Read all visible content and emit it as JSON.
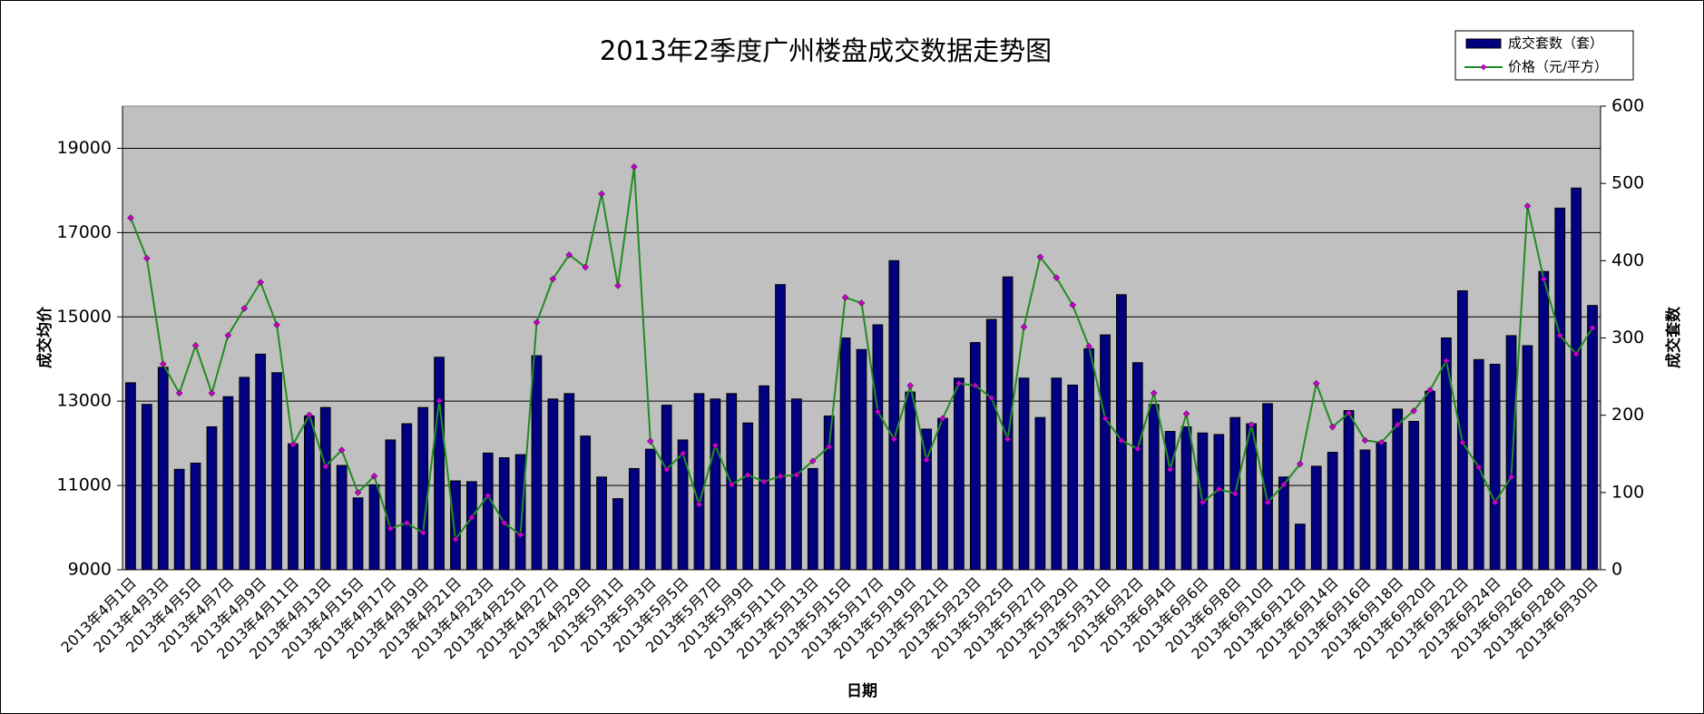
{
  "chart_data": {
    "type": "bar-line",
    "title": "2013年2季度广州楼盘成交数据走势图",
    "x_label": "日期",
    "y_label": "成交均价",
    "y2_label": "成交套数",
    "ylim": [
      9000,
      20000
    ],
    "yticks": [
      9000,
      11000,
      13000,
      15000,
      17000,
      19000
    ],
    "y2lim": [
      0,
      600
    ],
    "y2ticks": [
      0,
      100,
      200,
      300,
      400,
      500,
      600
    ],
    "grid": true,
    "legend": "top-right",
    "background": "#c0c0c0",
    "categories": [
      "2013年4月1日",
      null,
      "2013年4月3日",
      null,
      "2013年4月5日",
      null,
      "2013年4月7日",
      null,
      "2013年4月9日",
      null,
      "2013年4月11日",
      null,
      "2013年4月13日",
      null,
      "2013年4月15日",
      null,
      "2013年4月17日",
      null,
      "2013年4月19日",
      null,
      "2013年4月21日",
      null,
      "2013年4月23日",
      null,
      "2013年4月25日",
      null,
      "2013年4月27日",
      null,
      "2013年4月29日",
      null,
      "2013年5月1日",
      null,
      "2013年5月3日",
      null,
      "2013年5月5日",
      null,
      "2013年5月7日",
      null,
      "2013年5月9日",
      null,
      "2013年5月11日",
      null,
      "2013年5月13日",
      null,
      "2013年5月15日",
      null,
      "2013年5月17日",
      null,
      "2013年5月19日",
      null,
      "2013年5月21日",
      null,
      "2013年5月23日",
      null,
      "2013年5月25日",
      null,
      "2013年5月27日",
      null,
      "2013年5月29日",
      null,
      "2013年5月31日",
      null,
      "2013年6月2日",
      null,
      "2013年6月4日",
      null,
      "2013年6月6日",
      null,
      "2013年6月8日",
      null,
      "2013年6月10日",
      null,
      "2013年6月12日",
      null,
      "2013年6月14日",
      null,
      "2013年6月16日",
      null,
      "2013年6月18日",
      null,
      "2013年6月20日",
      null,
      "2013年6月22日",
      null,
      "2013年6月24日",
      null,
      "2013年6月26日",
      null,
      "2013年6月28日",
      null,
      "2013年6月30日"
    ],
    "series": [
      {
        "name": "成交套数（套）",
        "type": "bar",
        "axis": "y2",
        "color": "#000080",
        "values": [
          242,
          214,
          262,
          130,
          138,
          185,
          224,
          249,
          279,
          255,
          163,
          199,
          210,
          135,
          93,
          110,
          168,
          189,
          210,
          275,
          115,
          114,
          151,
          145,
          149,
          277,
          221,
          228,
          173,
          120,
          92,
          131,
          156,
          213,
          168,
          228,
          221,
          228,
          190,
          238,
          369,
          221,
          131,
          199,
          300,
          285,
          317,
          400,
          230,
          182,
          196,
          248,
          294,
          324,
          379,
          248,
          197,
          248,
          239,
          286,
          304,
          356,
          268,
          214,
          179,
          185,
          177,
          175,
          197,
          189,
          215,
          120,
          59,
          134,
          152,
          206,
          155,
          165,
          208,
          192,
          231,
          300,
          361,
          272,
          266,
          303,
          290,
          386,
          468,
          494,
          342
        ]
      },
      {
        "name": "价格（元/平方）",
        "type": "line",
        "axis": "y",
        "color": "#228b22",
        "marker_color": "#cc00cc",
        "values": [
          17350,
          16390,
          13880,
          13190,
          14320,
          13190,
          14560,
          15200,
          15820,
          14810,
          11970,
          12670,
          11450,
          11840,
          10830,
          11220,
          9980,
          10110,
          9880,
          13010,
          9720,
          10240,
          10760,
          10110,
          9830,
          14870,
          15900,
          16470,
          16180,
          17920,
          15740,
          18560,
          12050,
          11380,
          11760,
          10550,
          11950,
          11020,
          11250,
          11090,
          11220,
          11250,
          11580,
          11920,
          15460,
          15330,
          12750,
          12100,
          13370,
          11610,
          12590,
          13420,
          13370,
          13080,
          12100,
          14760,
          16420,
          15930,
          15280,
          14300,
          12590,
          12070,
          11870,
          13190,
          11380,
          12700,
          10600,
          10910,
          10810,
          12440,
          10600,
          11020,
          11510,
          13420,
          12390,
          12720,
          12070,
          12020,
          12440,
          12770,
          13260,
          13960,
          12020,
          11430,
          10600,
          11200,
          17630,
          15900,
          14560,
          14120,
          14740
        ]
      }
    ]
  }
}
